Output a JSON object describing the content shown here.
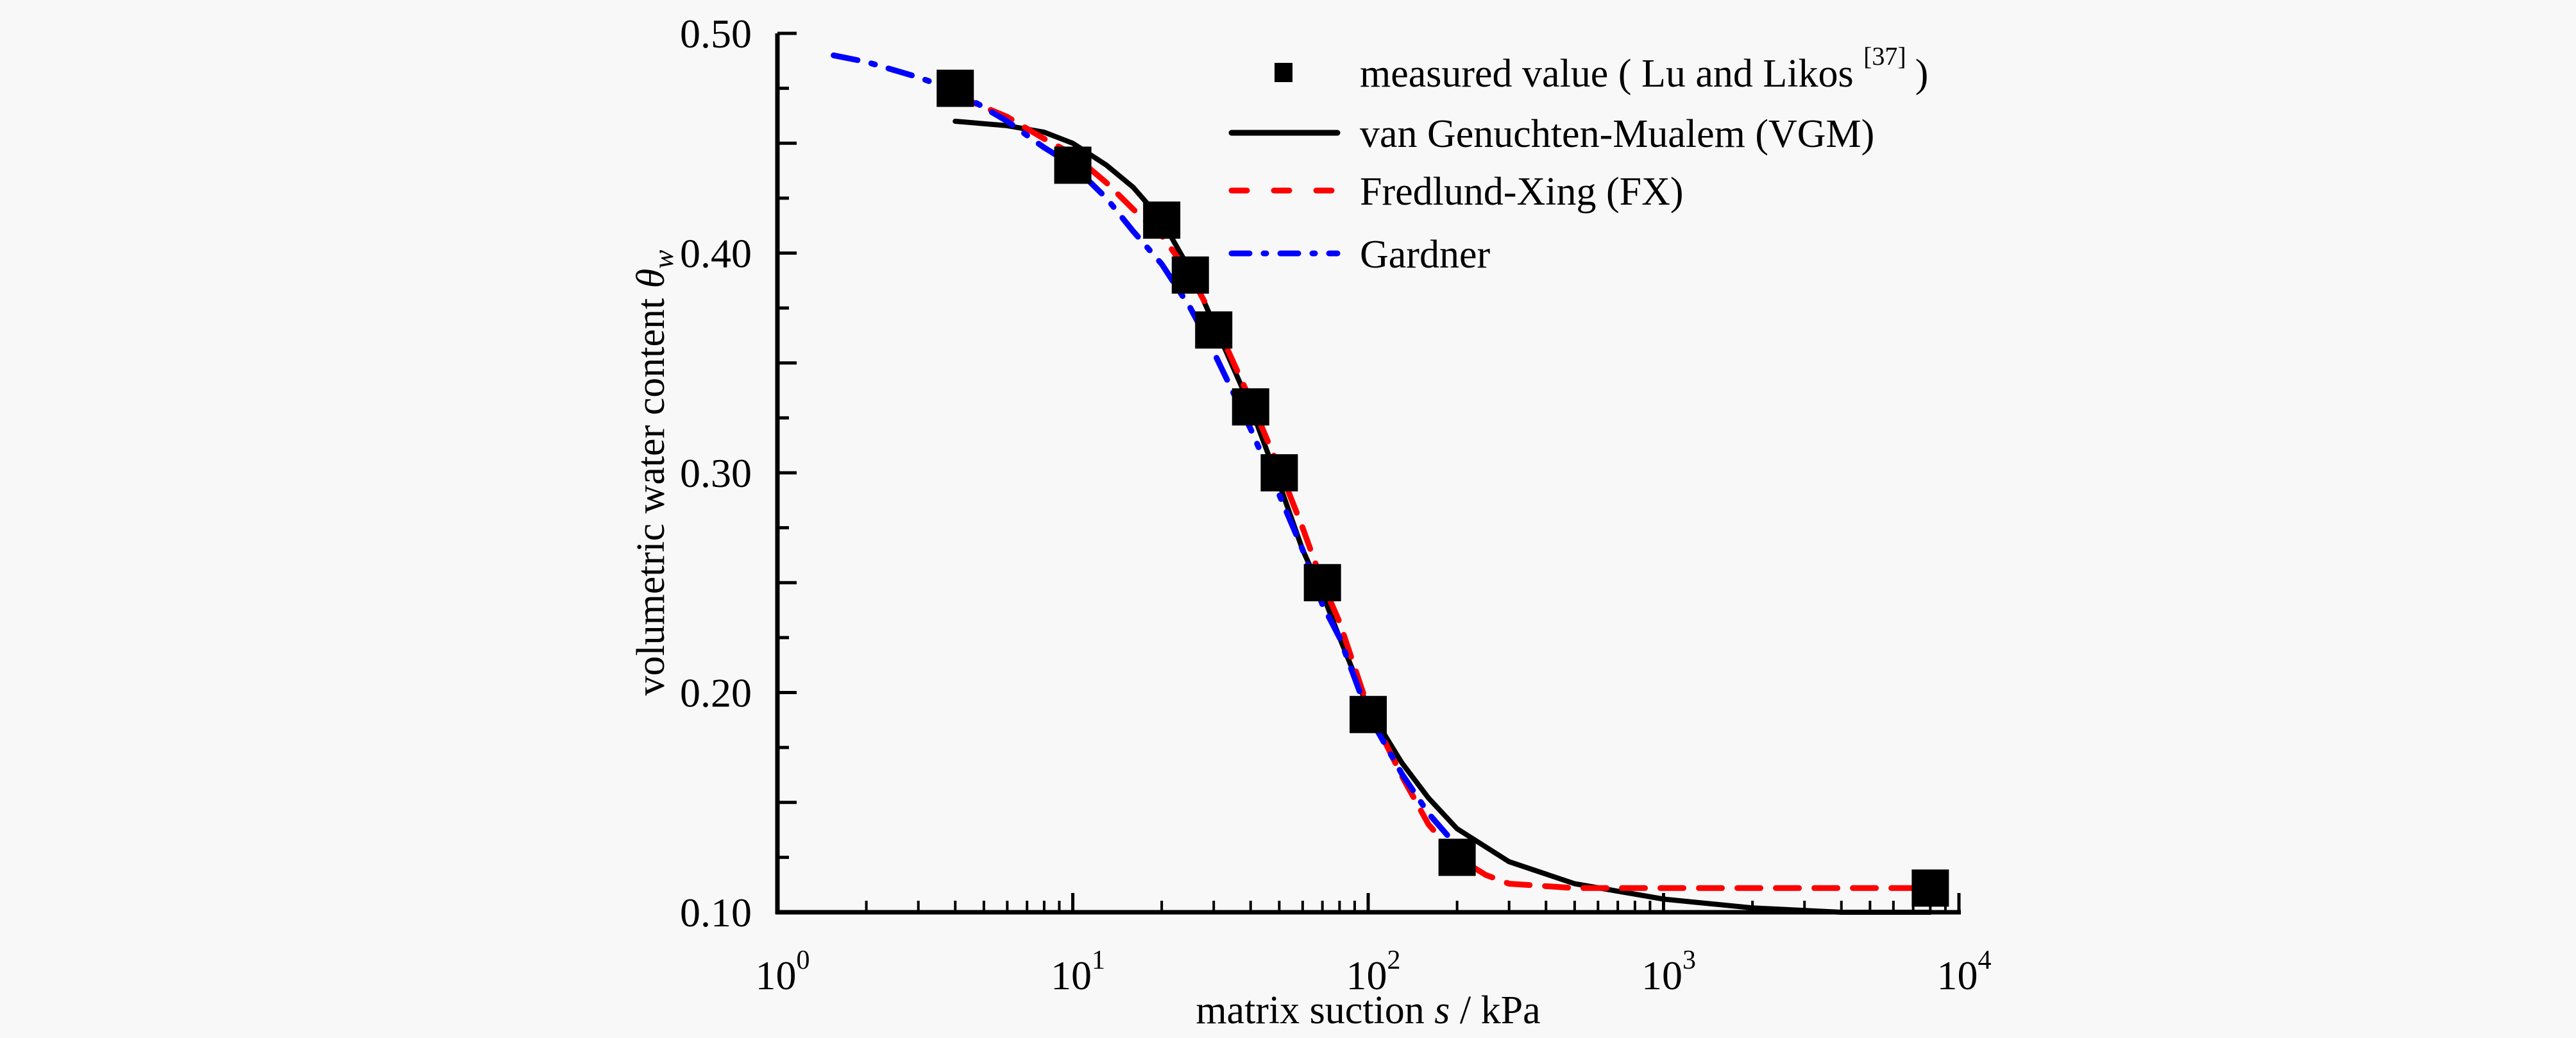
{
  "chart_data": {
    "type": "line",
    "title": "",
    "xlabel": "matrix suction s / kPa",
    "xlabel_parts": {
      "pre": "matrix suction ",
      "var": "s",
      "post": " / kPa"
    },
    "ylabel": "volumetric water content θw",
    "ylabel_parts": {
      "pre": "volumetric water content ",
      "var": "θ",
      "sub": "w"
    },
    "xscale": "log",
    "xlim": [
      1,
      10000
    ],
    "ylim": [
      0.1,
      0.5
    ],
    "grid": false,
    "x_ticks": [
      {
        "base": "10",
        "exp": "0",
        "value": 1
      },
      {
        "base": "10",
        "exp": "1",
        "value": 10
      },
      {
        "base": "10",
        "exp": "2",
        "value": 100
      },
      {
        "base": "10",
        "exp": "3",
        "value": 1000
      },
      {
        "base": "10",
        "exp": "4",
        "value": 10000
      }
    ],
    "y_ticks": [
      {
        "label": "0.50",
        "value": 0.5
      },
      {
        "label": "0.40",
        "value": 0.4
      },
      {
        "label": "0.30",
        "value": 0.3
      },
      {
        "label": "0.20",
        "value": 0.2
      },
      {
        "label": "0.10",
        "value": 0.1
      }
    ],
    "y_minor_step": 0.025,
    "legend_position": "top-right",
    "legend": [
      {
        "key": "measured",
        "text": "measured value ( Lu and Likos ",
        "sup": "[37]",
        "tail": ")"
      },
      {
        "key": "vgm",
        "text": "van  Genuchten-Mualem (VGM)"
      },
      {
        "key": "fx",
        "text": "Fredlund-Xing (FX)"
      },
      {
        "key": "gardner",
        "text": "Gardner"
      }
    ],
    "series": [
      {
        "key": "measured",
        "name": "measured value (Lu and Likos [37])",
        "style": "markers",
        "marker": "square",
        "color": "#000000",
        "x": [
          4,
          10,
          20,
          25,
          30,
          40,
          50,
          70,
          100,
          200,
          8000
        ],
        "y": [
          0.475,
          0.44,
          0.415,
          0.39,
          0.365,
          0.33,
          0.3,
          0.25,
          0.19,
          0.125,
          0.111
        ]
      },
      {
        "key": "vgm",
        "name": "van Genuchten-Mualem (VGM)",
        "style": "solid",
        "color": "#000000",
        "x": [
          4,
          6,
          8,
          10,
          13,
          16,
          20,
          25,
          30,
          40,
          50,
          60,
          70,
          80,
          100,
          130,
          160,
          200,
          300,
          500,
          1000,
          2000,
          4000,
          8000
        ],
        "y": [
          0.46,
          0.458,
          0.455,
          0.45,
          0.44,
          0.43,
          0.415,
          0.392,
          0.368,
          0.33,
          0.295,
          0.265,
          0.245,
          0.225,
          0.193,
          0.168,
          0.152,
          0.138,
          0.123,
          0.113,
          0.106,
          0.102,
          0.1,
          0.1
        ]
      },
      {
        "key": "fx",
        "name": "Fredlund-Xing (FX)",
        "style": "dashed",
        "color": "#ff0000",
        "x": [
          4,
          6,
          8,
          10,
          13,
          16,
          20,
          25,
          30,
          40,
          50,
          60,
          70,
          80,
          100,
          130,
          160,
          200,
          250,
          300,
          500,
          1000,
          8000
        ],
        "y": [
          0.472,
          0.462,
          0.452,
          0.445,
          0.432,
          0.42,
          0.408,
          0.39,
          0.37,
          0.333,
          0.302,
          0.275,
          0.25,
          0.232,
          0.193,
          0.162,
          0.14,
          0.125,
          0.117,
          0.113,
          0.111,
          0.111,
          0.111
        ]
      },
      {
        "key": "gardner",
        "name": "Gardner",
        "style": "dashdot",
        "color": "#0000ff",
        "x": [
          1.55,
          2,
          3,
          4,
          6,
          8,
          10,
          13,
          16,
          20,
          25,
          30,
          40,
          50,
          60,
          70,
          80,
          100,
          130,
          160,
          200,
          215
        ],
        "y": [
          0.49,
          0.487,
          0.48,
          0.474,
          0.46,
          0.448,
          0.44,
          0.425,
          0.41,
          0.395,
          0.375,
          0.355,
          0.32,
          0.29,
          0.265,
          0.24,
          0.225,
          0.19,
          0.163,
          0.145,
          0.13,
          0.125
        ]
      }
    ]
  }
}
